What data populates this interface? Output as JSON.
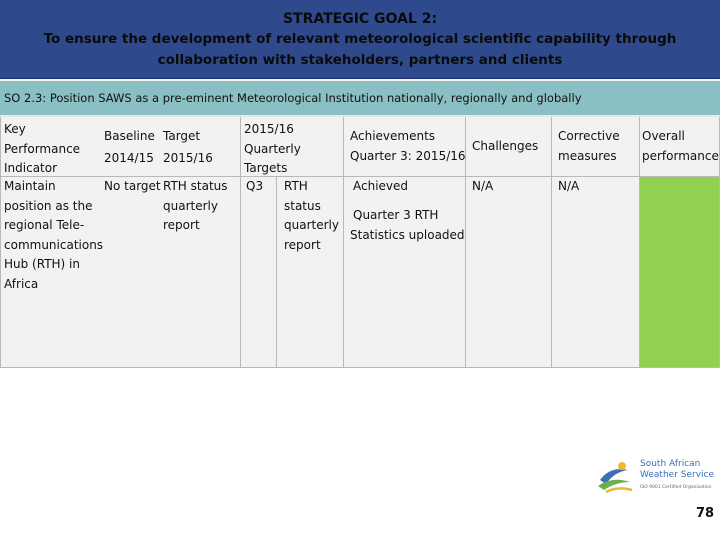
{
  "header": {
    "line1": "STRATEGIC GOAL 2:",
    "line2": "To ensure the development of relevant meteorological scientific capability through",
    "line3": "collaboration with stakeholders, partners and clients"
  },
  "so_text": "SO 2.3:  Position SAWS as a pre-eminent Meteorological Institution nationally, regionally and globally",
  "table": {
    "headers": {
      "kpi": [
        "Key",
        "Performance",
        "Indicator"
      ],
      "baseline": [
        "Baseline",
        "2014/15"
      ],
      "target": [
        "Target",
        "2015/16"
      ],
      "quarterly": [
        "2015/16",
        "Quarterly",
        "Targets"
      ],
      "achievements": [
        "Achievements",
        "Quarter 3: 2015/16"
      ],
      "challenges": "Challenges",
      "corrective": [
        "Corrective",
        "measures"
      ],
      "overall": [
        "Overall",
        "performance"
      ]
    },
    "row": {
      "kpi": [
        "Maintain",
        "position as the",
        "regional Tele-",
        "communications",
        "Hub (RTH)  in",
        "Africa"
      ],
      "baseline": "No target",
      "target": [
        "RTH status",
        "quarterly",
        "report"
      ],
      "quarter": "Q3",
      "quarterly_target": [
        "RTH",
        "status",
        "quarterly",
        "report"
      ],
      "achievement_status": "Achieved",
      "achievement_detail": [
        "Quarter 3 RTH",
        "Statistics uploaded"
      ],
      "challenges": "N/A",
      "corrective": "N/A",
      "overall_color": "#92d050"
    }
  },
  "logo": {
    "line1": "South  African",
    "line2": "Weather Service",
    "cert": "ISO 9001 Certified Organisation"
  },
  "page_number": "78",
  "colors": {
    "header_bg": "#2f4a8c",
    "so_bg": "#8ac0c4",
    "table_bg": "#f2f2f2",
    "overall_green": "#92d050"
  }
}
